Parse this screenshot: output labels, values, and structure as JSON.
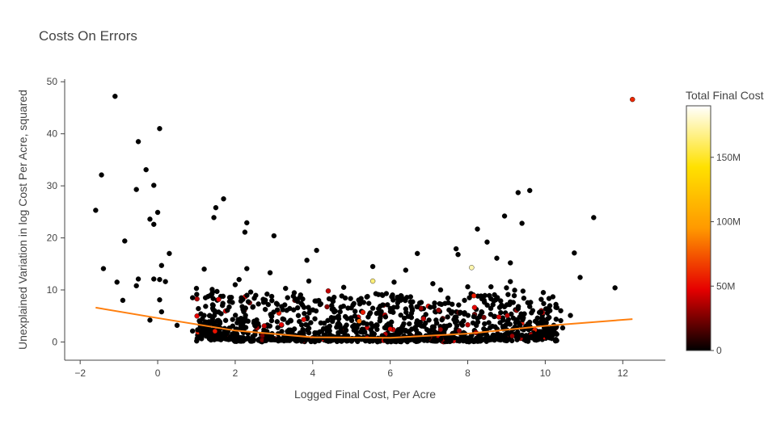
{
  "chart_data": {
    "type": "scatter",
    "title": "Costs On Errors",
    "xlabel": "Logged Final Cost, Per Acre",
    "ylabel": "Unexplained Variation in log Cost Per Acre, squared",
    "xlim": [
      -2.4,
      13.1
    ],
    "ylim": [
      -3.5,
      50.5
    ],
    "xticks": [
      -2,
      0,
      2,
      4,
      6,
      8,
      10,
      12
    ],
    "xtick_labels": [
      "−2",
      "0",
      "2",
      "4",
      "6",
      "8",
      "10",
      "12"
    ],
    "yticks": [
      0,
      10,
      20,
      30,
      40,
      50
    ],
    "ytick_labels": [
      "0",
      "10",
      "20",
      "30",
      "40",
      "50"
    ],
    "grid": false,
    "colorscale": [
      "#000000",
      "#e60000",
      "#ff9900",
      "#ffe100",
      "#ffffff"
    ],
    "colorbar": {
      "title": "Total Final Cost",
      "range": [
        0,
        190
      ],
      "ticks": [
        0,
        50,
        100,
        150
      ],
      "tick_labels": [
        "0",
        "50M",
        "100M",
        "150M"
      ]
    },
    "series": [
      {
        "mode": "markers",
        "points": [
          [
            -1.1,
            47.2,
            0
          ],
          [
            0.05,
            41,
            0
          ],
          [
            -0.5,
            38.5,
            0
          ],
          [
            -0.3,
            33.1,
            0
          ],
          [
            -1.45,
            32.1,
            0
          ],
          [
            -0.1,
            30.1,
            0
          ],
          [
            -0.55,
            29.3,
            0
          ],
          [
            -1.6,
            25.3,
            0
          ],
          [
            0.0,
            24.9,
            0
          ],
          [
            -0.2,
            23.6,
            0
          ],
          [
            -0.1,
            22.6,
            0
          ],
          [
            -0.85,
            19.4,
            0
          ],
          [
            0.3,
            17.0,
            0
          ],
          [
            0.1,
            14.7,
            0
          ],
          [
            -1.4,
            14.1,
            0
          ],
          [
            -1.05,
            11.5,
            0
          ],
          [
            -0.5,
            12.1,
            0
          ],
          [
            -0.55,
            10.8,
            0
          ],
          [
            -0.9,
            8.0,
            0
          ],
          [
            -0.2,
            4.2,
            0
          ],
          [
            -0.1,
            12.1,
            0
          ],
          [
            0.05,
            12.0,
            0
          ],
          [
            0.2,
            11.6,
            0
          ],
          [
            0.05,
            8.1,
            0
          ],
          [
            0.1,
            5.8,
            0
          ],
          [
            1.7,
            27.5,
            0
          ],
          [
            1.5,
            25.8,
            0
          ],
          [
            1.45,
            23.9,
            0
          ],
          [
            2.3,
            22.9,
            0
          ],
          [
            2.25,
            21.1,
            0
          ],
          [
            3.0,
            20.4,
            0
          ],
          [
            2.3,
            14.1,
            0
          ],
          [
            1.2,
            14.0,
            0
          ],
          [
            2.1,
            12.0,
            0
          ],
          [
            2.9,
            13.3,
            0
          ],
          [
            4.1,
            17.6,
            0
          ],
          [
            3.85,
            15.7,
            0
          ],
          [
            5.55,
            14.5,
            0
          ],
          [
            6.7,
            17.0,
            0
          ],
          [
            6.4,
            13.8,
            0
          ],
          [
            7.7,
            17.9,
            0
          ],
          [
            7.75,
            16.8,
            0
          ],
          [
            8.5,
            19.2,
            0
          ],
          [
            8.25,
            21.7,
            0
          ],
          [
            8.95,
            24.2,
            0
          ],
          [
            9.4,
            22.8,
            0
          ],
          [
            9.3,
            28.7,
            0
          ],
          [
            9.6,
            29.1,
            0
          ],
          [
            8.75,
            16.1,
            0
          ],
          [
            9.1,
            15.2,
            0
          ],
          [
            11.25,
            23.9,
            0
          ],
          [
            10.75,
            17.1,
            0
          ],
          [
            10.9,
            12.4,
            0
          ],
          [
            11.8,
            10.4,
            0
          ],
          [
            12.25,
            46.6,
            60
          ],
          [
            5.55,
            11.7,
            165
          ],
          [
            8.1,
            14.3,
            175
          ],
          [
            9.95,
            9.5,
            0
          ],
          [
            10.3,
            6.6,
            0
          ],
          [
            10.4,
            4.1,
            0
          ],
          [
            10.65,
            5.1,
            0
          ],
          [
            10.4,
            6.0,
            0
          ],
          [
            10.45,
            2.7,
            0
          ],
          [
            9.6,
            6.8,
            0
          ],
          [
            9.5,
            3.0,
            0
          ],
          [
            9.1,
            11.6,
            0
          ],
          [
            9.2,
            8.9,
            0
          ],
          [
            9.3,
            6.4,
            0
          ],
          [
            9.0,
            10.4,
            0
          ],
          [
            8.6,
            10.6,
            0
          ],
          [
            8.0,
            10.6,
            0
          ],
          [
            7.3,
            10.0,
            0
          ],
          [
            7.1,
            11.2,
            0
          ],
          [
            6.1,
            11.5,
            0
          ],
          [
            5.9,
            9.3,
            0
          ],
          [
            4.8,
            10.5,
            0
          ],
          [
            3.9,
            11.7,
            0
          ],
          [
            3.3,
            10.3,
            0
          ],
          [
            2.4,
            9.6,
            0
          ],
          [
            2.0,
            11.0,
            0
          ],
          [
            1.0,
            10.3,
            0
          ],
          [
            1.4,
            9.2,
            0
          ],
          [
            0.9,
            8.5,
            0
          ],
          [
            4.4,
            9.8,
            40
          ],
          [
            3.5,
            8.8,
            0
          ],
          [
            5.2,
            4.0,
            80
          ],
          [
            2.75,
            3.1,
            40
          ],
          [
            6.0,
            2.5,
            50
          ],
          [
            7.3,
            2.4,
            30
          ],
          [
            8.0,
            3.3,
            40
          ],
          [
            5.7,
            6.4,
            0
          ],
          [
            6.8,
            7.6,
            0
          ],
          [
            7.6,
            5.8,
            0
          ],
          [
            4.5,
            6.3,
            0
          ],
          [
            3.2,
            6.8,
            0
          ],
          [
            2.6,
            7.3,
            0
          ],
          [
            1.8,
            6.1,
            0
          ],
          [
            1.2,
            5.1,
            0
          ],
          [
            0.5,
            3.2,
            0
          ],
          [
            0.9,
            2.1,
            0
          ],
          [
            8.6,
            8.3,
            0
          ],
          [
            8.85,
            7.9,
            0
          ],
          [
            9.6,
            3.8,
            0
          ],
          [
            9.8,
            4.6,
            0
          ],
          [
            9.4,
            1.3,
            0
          ]
        ]
      },
      {
        "mode": "lines",
        "color": "#ff7f0e",
        "x": [
          -1.6,
          0,
          2,
          4,
          6,
          8,
          10,
          12.25
        ],
        "y": [
          6.6,
          4.6,
          2.2,
          0.9,
          0.8,
          1.6,
          3.1,
          4.4
        ]
      }
    ]
  }
}
